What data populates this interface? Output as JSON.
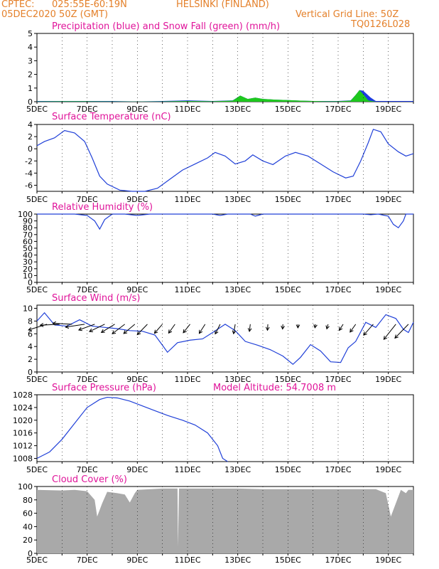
{
  "header": {
    "line1_left": "CPTEC:",
    "coords": "025:55E-60:19N",
    "location": "HELSINKI (FINLAND)",
    "run": "05DEC2020 50Z (GMT)",
    "grid_note": "Vertical Grid Line: 50Z",
    "code": "TQ0126L028"
  },
  "colors": {
    "header": "#e4802a",
    "title": "#e0149a",
    "line": "#2040d8",
    "precip": "#1c3ce0",
    "snow": "#1ec81e",
    "cloud": "#a9a9a9",
    "axis": "#000000"
  },
  "x_ticks": [
    "5DEC",
    "7DEC",
    "9DEC",
    "11DEC",
    "13DEC",
    "15DEC",
    "17DEC",
    "19DEC"
  ],
  "chart_data": [
    {
      "id": "precip",
      "type": "area",
      "title": "Precipitation (blue) and Snow Fall (green) (mm/h)",
      "ylim": [
        0,
        5
      ],
      "yticks": [
        0,
        1,
        2,
        3,
        4,
        5
      ],
      "xlim": [
        5,
        20
      ],
      "series": [
        {
          "color": "precip",
          "values": [
            [
              5,
              0.05
            ],
            [
              6,
              0.05
            ],
            [
              7,
              0.05
            ],
            [
              8,
              0.05
            ],
            [
              9,
              0.02
            ],
            [
              10,
              0.05
            ],
            [
              11,
              0.1
            ],
            [
              12,
              0.05
            ],
            [
              12.8,
              0.1
            ],
            [
              13.1,
              0.45
            ],
            [
              13.4,
              0.2
            ],
            [
              13.7,
              0.3
            ],
            [
              14,
              0.2
            ],
            [
              14.5,
              0.15
            ],
            [
              15,
              0.12
            ],
            [
              15.5,
              0.08
            ],
            [
              16,
              0.05
            ],
            [
              16.5,
              0.05
            ],
            [
              17,
              0.05
            ],
            [
              17.5,
              0.1
            ],
            [
              17.7,
              0.5
            ],
            [
              17.85,
              0.85
            ],
            [
              18,
              0.8
            ],
            [
              18.3,
              0.3
            ],
            [
              18.5,
              0.05
            ],
            [
              19,
              0.05
            ],
            [
              20,
              0.05
            ]
          ]
        },
        {
          "color": "snow",
          "values": [
            [
              5,
              0.02
            ],
            [
              6,
              0.03
            ],
            [
              7,
              0.03
            ],
            [
              8,
              0.02
            ],
            [
              9,
              0.01
            ],
            [
              10,
              0.02
            ],
            [
              11,
              0.05
            ],
            [
              12,
              0.03
            ],
            [
              12.8,
              0.08
            ],
            [
              13.1,
              0.45
            ],
            [
              13.4,
              0.2
            ],
            [
              13.7,
              0.3
            ],
            [
              14,
              0.2
            ],
            [
              14.5,
              0.15
            ],
            [
              15,
              0.12
            ],
            [
              15.5,
              0.08
            ],
            [
              16,
              0.05
            ],
            [
              16.5,
              0.03
            ],
            [
              17,
              0.03
            ],
            [
              17.5,
              0.08
            ],
            [
              17.7,
              0.5
            ],
            [
              17.85,
              0.85
            ],
            [
              18,
              0.55
            ],
            [
              18.2,
              0.1
            ],
            [
              18.5,
              0.0
            ],
            [
              19,
              0.0
            ],
            [
              20,
              0.0
            ]
          ]
        }
      ]
    },
    {
      "id": "temp",
      "type": "line",
      "title": "Surface Temperature (nC)",
      "ylim": [
        -7,
        4
      ],
      "yticks": [
        -6,
        -4,
        -2,
        0,
        2,
        4
      ],
      "xlim": [
        5,
        20
      ],
      "values": [
        [
          5,
          0.5
        ],
        [
          5.3,
          1.2
        ],
        [
          5.7,
          1.8
        ],
        [
          6.1,
          3.0
        ],
        [
          6.5,
          2.6
        ],
        [
          6.9,
          1.2
        ],
        [
          7.2,
          -1.5
        ],
        [
          7.5,
          -4.5
        ],
        [
          7.8,
          -5.8
        ],
        [
          8.3,
          -6.8
        ],
        [
          8.8,
          -7.5
        ],
        [
          9.3,
          -7.5
        ],
        [
          9.8,
          -6.5
        ],
        [
          10.3,
          -5.0
        ],
        [
          10.8,
          -3.5
        ],
        [
          11.3,
          -2.5
        ],
        [
          11.8,
          -1.5
        ],
        [
          12.1,
          -0.6
        ],
        [
          12.5,
          -1.2
        ],
        [
          12.9,
          -2.5
        ],
        [
          13.3,
          -2.0
        ],
        [
          13.6,
          -1.0
        ],
        [
          14.0,
          -2.0
        ],
        [
          14.4,
          -2.6
        ],
        [
          14.9,
          -1.2
        ],
        [
          15.3,
          -0.6
        ],
        [
          15.8,
          -1.2
        ],
        [
          16.3,
          -2.5
        ],
        [
          16.8,
          -3.8
        ],
        [
          17.3,
          -4.8
        ],
        [
          17.6,
          -4.5
        ],
        [
          17.9,
          -2.0
        ],
        [
          18.2,
          1.0
        ],
        [
          18.4,
          3.2
        ],
        [
          18.7,
          2.8
        ],
        [
          19.0,
          0.8
        ],
        [
          19.4,
          -0.5
        ],
        [
          19.7,
          -1.2
        ],
        [
          20,
          -0.8
        ]
      ]
    },
    {
      "id": "rh",
      "type": "line",
      "title": "Relative Humidity (%)",
      "ylim": [
        0,
        100
      ],
      "yticks": [
        0,
        10,
        20,
        30,
        40,
        50,
        60,
        70,
        80,
        90,
        100
      ],
      "xlim": [
        5,
        20
      ],
      "values": [
        [
          5,
          100
        ],
        [
          6.5,
          100
        ],
        [
          7,
          98
        ],
        [
          7.3,
          90
        ],
        [
          7.5,
          78
        ],
        [
          7.7,
          92
        ],
        [
          8,
          100
        ],
        [
          8.5,
          100
        ],
        [
          9,
          98
        ],
        [
          9.5,
          100
        ],
        [
          12,
          100
        ],
        [
          12.3,
          98
        ],
        [
          12.6,
          100
        ],
        [
          13.5,
          100
        ],
        [
          13.7,
          97
        ],
        [
          14,
          100
        ],
        [
          17.5,
          100
        ],
        [
          18,
          100
        ],
        [
          18.3,
          99
        ],
        [
          18.6,
          100
        ],
        [
          19.0,
          97
        ],
        [
          19.2,
          85
        ],
        [
          19.4,
          80
        ],
        [
          19.6,
          90
        ],
        [
          19.7,
          100
        ],
        [
          20,
          100
        ]
      ]
    },
    {
      "id": "wind",
      "type": "line",
      "title": "Surface Wind (m/s)",
      "ylim": [
        0,
        10.5
      ],
      "yticks": [
        0,
        2,
        4,
        6,
        8,
        10
      ],
      "xlim": [
        5,
        20
      ],
      "values": [
        [
          5,
          8.0
        ],
        [
          5.3,
          9.3
        ],
        [
          5.7,
          7.4
        ],
        [
          6.2,
          7.2
        ],
        [
          6.7,
          8.2
        ],
        [
          7.2,
          7.2
        ],
        [
          7.7,
          7.0
        ],
        [
          8.2,
          6.8
        ],
        [
          8.7,
          6.5
        ],
        [
          9.2,
          6.4
        ],
        [
          9.7,
          5.8
        ],
        [
          10.0,
          4.2
        ],
        [
          10.2,
          3.1
        ],
        [
          10.6,
          4.6
        ],
        [
          11.1,
          5.0
        ],
        [
          11.6,
          5.2
        ],
        [
          12.0,
          6.2
        ],
        [
          12.5,
          7.5
        ],
        [
          12.9,
          6.5
        ],
        [
          13.3,
          4.8
        ],
        [
          13.8,
          4.2
        ],
        [
          14.3,
          3.5
        ],
        [
          14.8,
          2.5
        ],
        [
          15.2,
          1.2
        ],
        [
          15.5,
          2.3
        ],
        [
          15.9,
          4.3
        ],
        [
          16.3,
          3.3
        ],
        [
          16.7,
          1.6
        ],
        [
          17.1,
          1.5
        ],
        [
          17.4,
          3.8
        ],
        [
          17.7,
          4.8
        ],
        [
          18.1,
          7.8
        ],
        [
          18.5,
          7.0
        ],
        [
          18.9,
          9.0
        ],
        [
          19.3,
          8.4
        ],
        [
          19.6,
          6.7
        ],
        [
          19.8,
          6.2
        ],
        [
          20,
          7.8
        ]
      ],
      "arrows": [
        [
          5.4,
          0.3,
          8
        ],
        [
          5.9,
          0.05,
          8
        ],
        [
          6.4,
          -0.05,
          8
        ],
        [
          6.9,
          0.15,
          8
        ],
        [
          7.3,
          0.35,
          7
        ],
        [
          7.7,
          0.45,
          7
        ],
        [
          8.1,
          0.55,
          6.5
        ],
        [
          8.5,
          0.65,
          6.5
        ],
        [
          8.9,
          0.7,
          6
        ],
        [
          9.4,
          0.8,
          6
        ],
        [
          10.0,
          0.85,
          5
        ],
        [
          10.5,
          0.95,
          4.5
        ],
        [
          11.1,
          0.9,
          4.5
        ],
        [
          11.7,
          1.0,
          4.5
        ],
        [
          12.3,
          1.1,
          4.5
        ],
        [
          12.9,
          1.4,
          4
        ],
        [
          13.5,
          1.45,
          3
        ],
        [
          14.2,
          1.5,
          2.5
        ],
        [
          14.8,
          1.5,
          2
        ],
        [
          15.4,
          1.55,
          1.5
        ],
        [
          16.1,
          1.4,
          1.5
        ],
        [
          16.6,
          1.3,
          2
        ],
        [
          17.2,
          1.0,
          3
        ],
        [
          17.7,
          0.95,
          4
        ],
        [
          18.4,
          0.85,
          6
        ],
        [
          19.3,
          0.9,
          8
        ],
        [
          19.8,
          0.8,
          8
        ]
      ]
    },
    {
      "id": "pressure",
      "type": "line",
      "title": "Surface Pressure (hPa)",
      "subtitle": "Model Altitude: 54.7008 m",
      "ylim": [
        1007,
        1028
      ],
      "yticks": [
        1008,
        1012,
        1016,
        1020,
        1024,
        1028
      ],
      "xlim": [
        5,
        20
      ],
      "values": [
        [
          5,
          1008
        ],
        [
          5.5,
          1010
        ],
        [
          6,
          1014
        ],
        [
          6.5,
          1019
        ],
        [
          7,
          1024
        ],
        [
          7.5,
          1026.5
        ],
        [
          7.8,
          1027.2
        ],
        [
          8.2,
          1027
        ],
        [
          8.7,
          1026
        ],
        [
          9.2,
          1024.5
        ],
        [
          9.7,
          1023
        ],
        [
          10.2,
          1021.5
        ],
        [
          10.8,
          1020
        ],
        [
          11.3,
          1018.5
        ],
        [
          11.8,
          1016
        ],
        [
          12.2,
          1012
        ],
        [
          12.4,
          1008
        ],
        [
          12.6,
          1006
        ]
      ]
    },
    {
      "id": "cloud",
      "type": "area",
      "title": "Cloud Cover (%)",
      "ylim": [
        0,
        100
      ],
      "yticks": [
        0,
        20,
        40,
        60,
        80,
        100
      ],
      "xlim": [
        5,
        20
      ],
      "values": [
        [
          5,
          95
        ],
        [
          6,
          94
        ],
        [
          6.5,
          95
        ],
        [
          7,
          93
        ],
        [
          7.3,
          80
        ],
        [
          7.4,
          55
        ],
        [
          7.6,
          75
        ],
        [
          7.8,
          92
        ],
        [
          8.2,
          90
        ],
        [
          8.5,
          88
        ],
        [
          8.7,
          76
        ],
        [
          8.9,
          90
        ],
        [
          9,
          95
        ],
        [
          10,
          97
        ],
        [
          10.6,
          97
        ],
        [
          10.62,
          10
        ],
        [
          10.66,
          97
        ],
        [
          11,
          97
        ],
        [
          12,
          97
        ],
        [
          13,
          97
        ],
        [
          14,
          96
        ],
        [
          15,
          96
        ],
        [
          16,
          96
        ],
        [
          17,
          96
        ],
        [
          18,
          96
        ],
        [
          18.5,
          96
        ],
        [
          18.9,
          90
        ],
        [
          19.1,
          55
        ],
        [
          19.3,
          75
        ],
        [
          19.5,
          95
        ],
        [
          19.7,
          90
        ],
        [
          19.8,
          95
        ],
        [
          20,
          95
        ]
      ]
    }
  ]
}
